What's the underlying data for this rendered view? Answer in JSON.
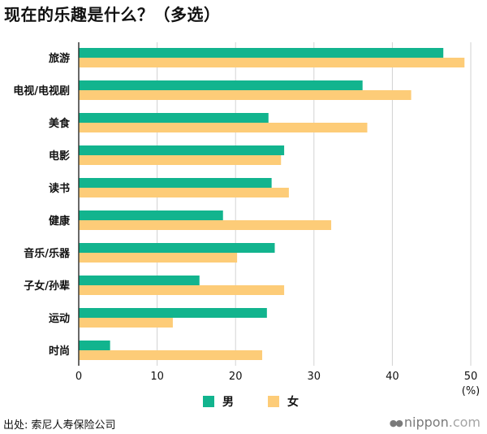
{
  "title": "现在的乐趣是什么？（多选）",
  "chart_data": {
    "type": "bar",
    "orientation": "horizontal",
    "categories": [
      "旅游",
      "电视/电视剧",
      "美食",
      "电影",
      "读书",
      "健康",
      "音乐/乐器",
      "子女/孙辈",
      "运动",
      "时尚"
    ],
    "series": [
      {
        "name": "男",
        "color": "#12b48e",
        "values": [
          46.5,
          36.2,
          24.2,
          26.2,
          24.6,
          18.4,
          25.0,
          15.4,
          24.0,
          4.0
        ]
      },
      {
        "name": "女",
        "color": "#fdcc78",
        "values": [
          49.2,
          42.4,
          36.8,
          25.8,
          26.8,
          32.2,
          20.2,
          26.2,
          12.0,
          23.4
        ]
      }
    ],
    "xlim": [
      0,
      50
    ],
    "xticks": [
      "0",
      "10",
      "20",
      "30",
      "40",
      "50"
    ],
    "unit_label": "(%)",
    "grid": "vertical",
    "legend_position": "bottom"
  },
  "source": "出处:  索尼人寿保险公司",
  "brand": {
    "name": "nippon",
    "suffix": ".com",
    "dots": "●●"
  }
}
